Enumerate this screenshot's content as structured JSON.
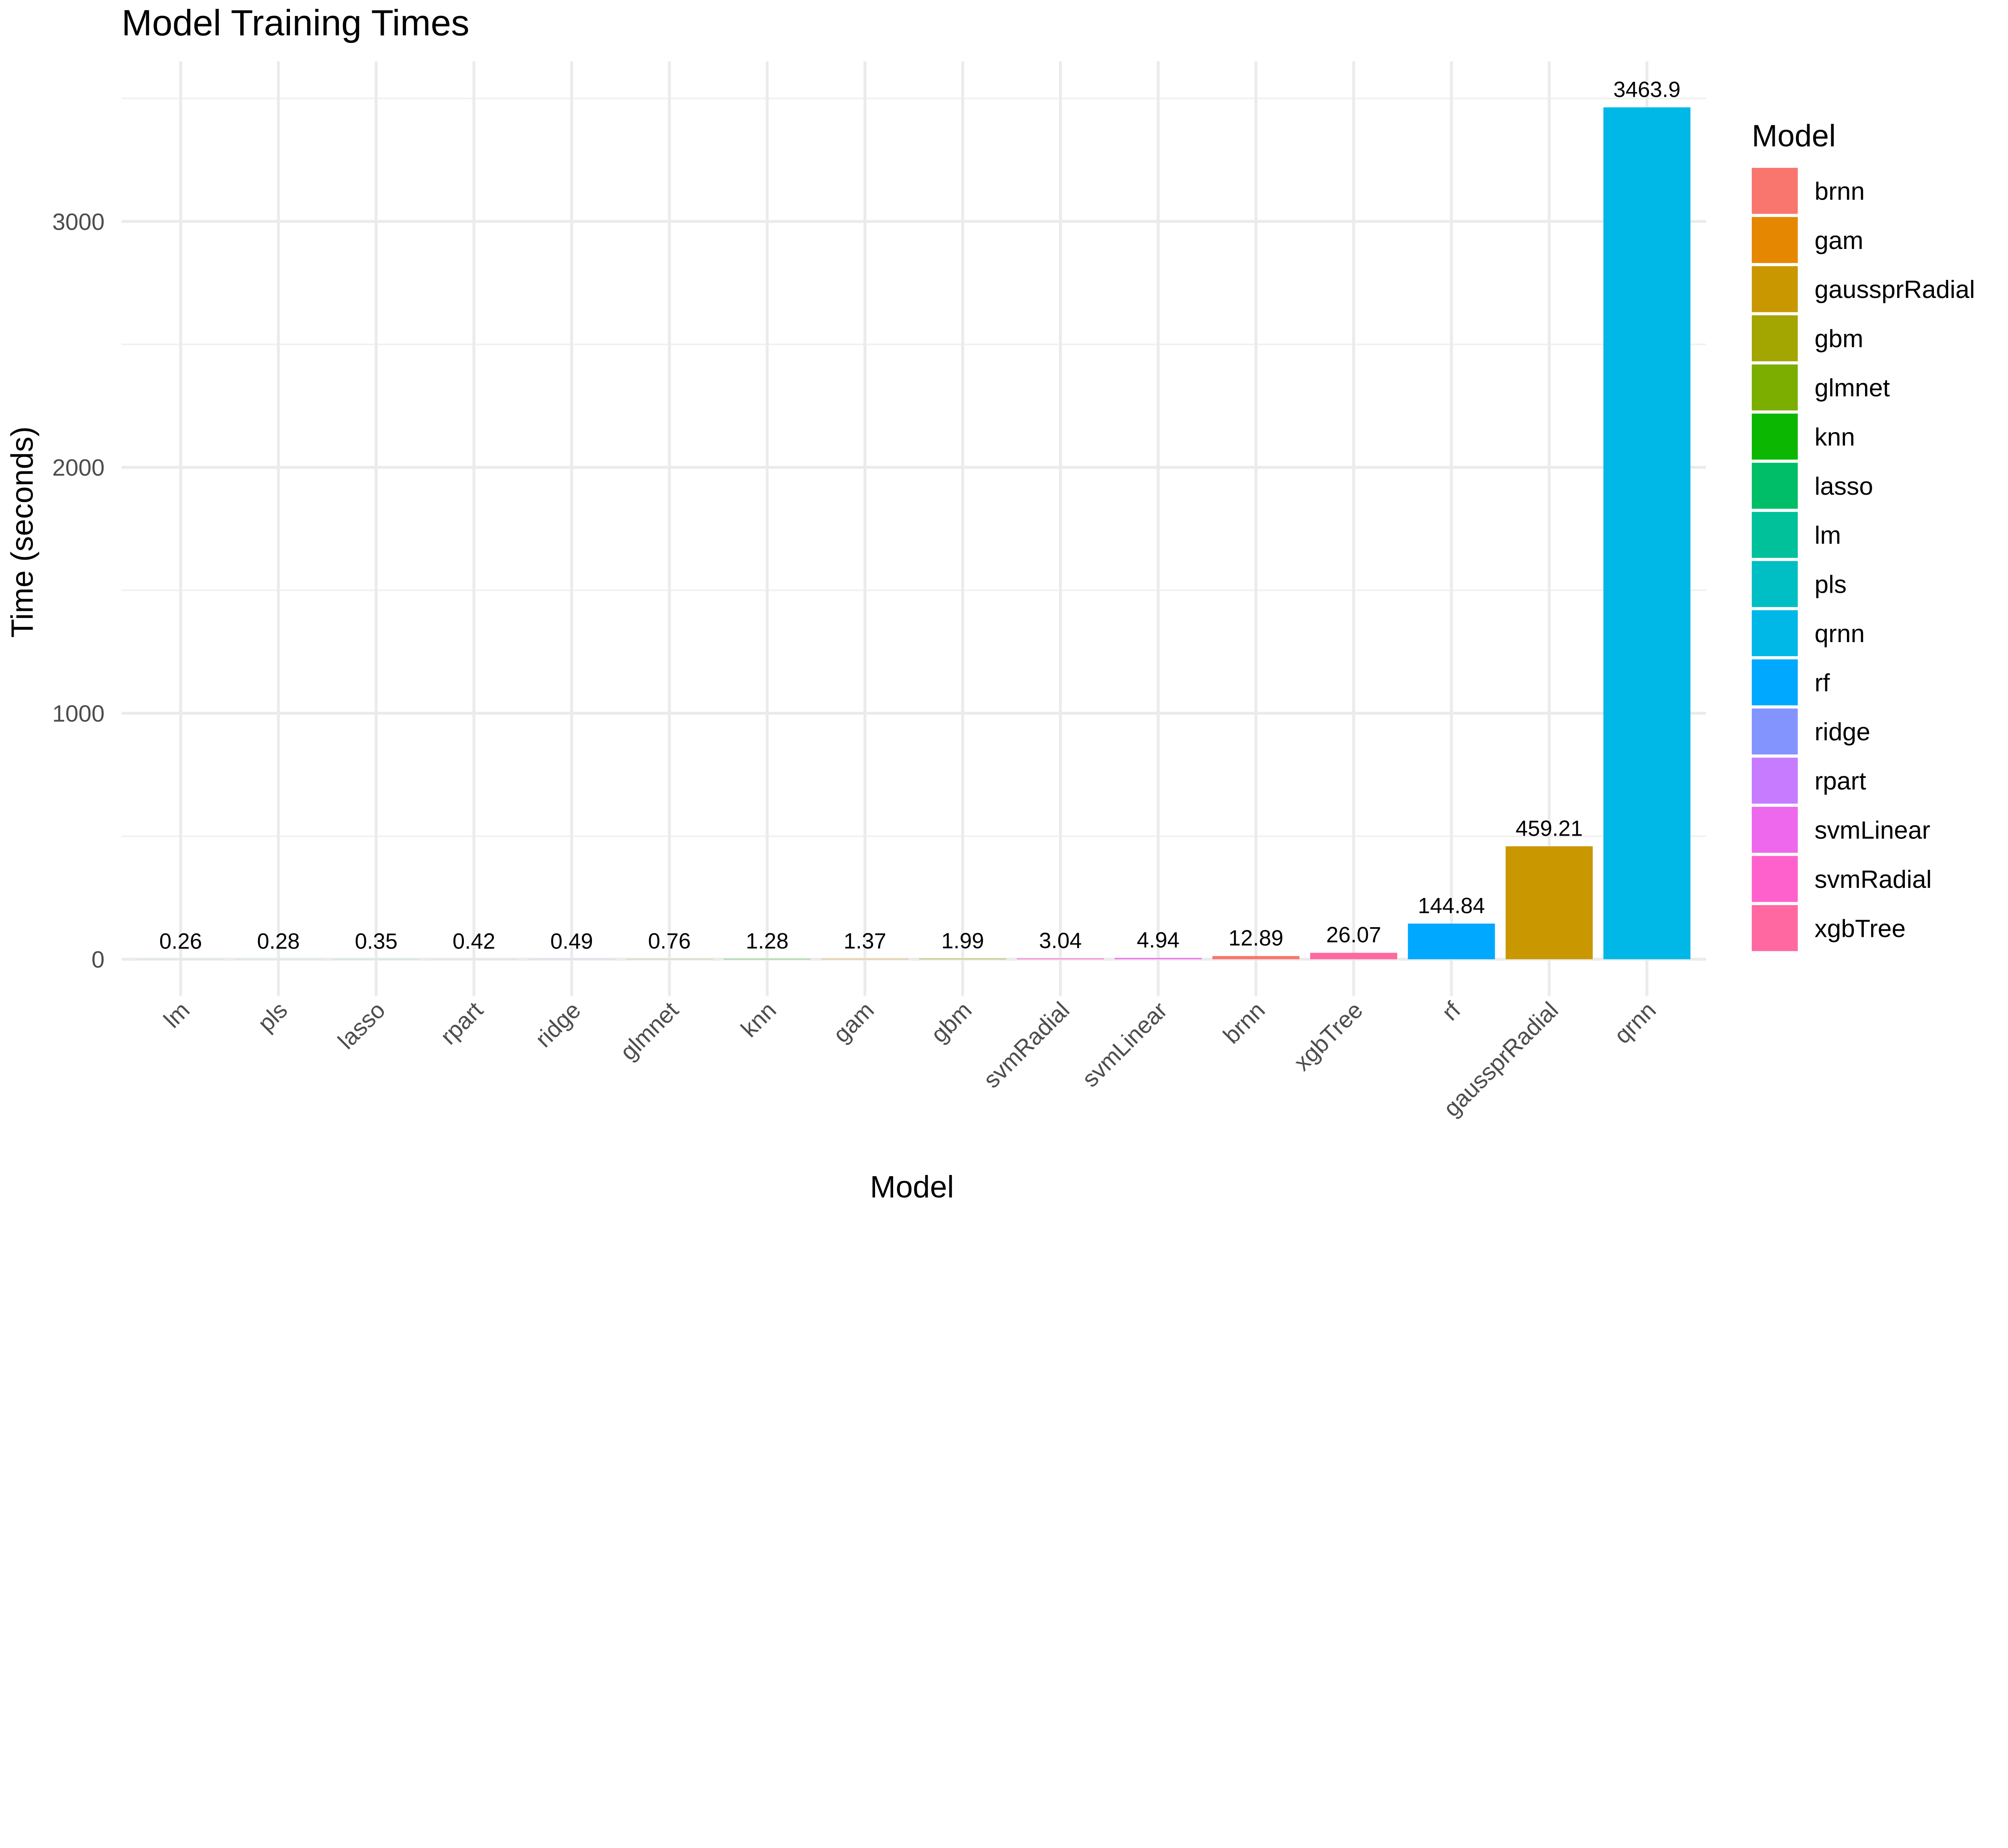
{
  "chart_data": {
    "type": "bar",
    "title": "Model Training Times",
    "xlabel": "Model",
    "ylabel": "Time (seconds)",
    "ylim": [
      0,
      3600
    ],
    "yticks": [
      0,
      1000,
      2000,
      3000
    ],
    "grid": true,
    "legend": {
      "title": "Model",
      "placement": "right"
    },
    "categories": [
      "lm",
      "pls",
      "lasso",
      "rpart",
      "ridge",
      "glmnet",
      "knn",
      "gam",
      "gbm",
      "svmRadial",
      "svmLinear",
      "brnn",
      "xgbTree",
      "rf",
      "gaussprRadial",
      "qrnn"
    ],
    "values": [
      0.26,
      0.28,
      0.35,
      0.42,
      0.49,
      0.76,
      1.28,
      1.37,
      1.99,
      3.04,
      4.94,
      12.89,
      26.07,
      144.84,
      459.21,
      3463.9
    ],
    "value_labels": [
      "0.26",
      "0.28",
      "0.35",
      "0.42",
      "0.49",
      "0.76",
      "1.28",
      "1.37",
      "1.99",
      "3.04",
      "4.94",
      "12.89",
      "26.07",
      "144.84",
      "459.21",
      "3463.9"
    ],
    "legend_entries": [
      "brnn",
      "gam",
      "gaussprRadial",
      "gbm",
      "glmnet",
      "knn",
      "lasso",
      "lm",
      "pls",
      "qrnn",
      "rf",
      "ridge",
      "rpart",
      "svmLinear",
      "svmRadial",
      "xgbTree"
    ],
    "colors": {
      "brnn": "#F8766D",
      "gam": "#E58700",
      "gaussprRadial": "#C99800",
      "gbm": "#A3A500",
      "glmnet": "#7CAE00",
      "knn": "#0CB702",
      "lasso": "#00BE67",
      "lm": "#00C19A",
      "pls": "#00BFC4",
      "qrnn": "#00B8E7",
      "rf": "#00A9FF",
      "ridge": "#8494FF",
      "rpart": "#C77CFF",
      "svmLinear": "#ED68ED",
      "svmRadial": "#FF61CC",
      "xgbTree": "#FF68A1"
    }
  }
}
